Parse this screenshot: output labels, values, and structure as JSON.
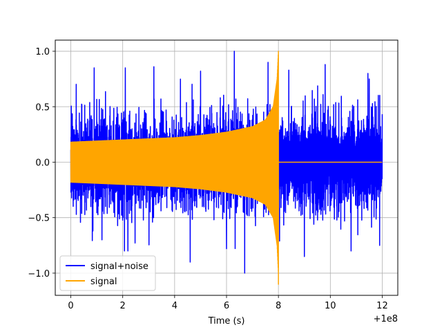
{
  "chart_data": {
    "type": "line",
    "title": "",
    "xlabel": "Time (s)",
    "ylabel": "",
    "x_offset_label": "+1e8",
    "xlim": [
      -0.6,
      12.6
    ],
    "ylim": [
      -1.2,
      1.1
    ],
    "xticks": [
      0,
      2,
      4,
      6,
      8,
      10,
      12
    ],
    "xtick_labels": [
      "0",
      "2",
      "4",
      "6",
      "8",
      "10",
      "12"
    ],
    "yticks": [
      -1.0,
      -0.5,
      0.0,
      0.5,
      1.0
    ],
    "ytick_labels": [
      "−1.0",
      "−0.5",
      "0.0",
      "0.5",
      "1.0"
    ],
    "grid": true,
    "legend_position": "lower-left",
    "series": [
      {
        "name": "signal+noise",
        "color": "#0000ff",
        "x_range": [
          0,
          12
        ],
        "typical_envelope": 0.4,
        "noise_peaks": [
          {
            "x": 0.9,
            "y": 0.85
          },
          {
            "x": 1.2,
            "y": -0.7
          },
          {
            "x": 2.1,
            "y": 0.85
          },
          {
            "x": 2.2,
            "y": -0.8
          },
          {
            "x": 3.2,
            "y": 0.86
          },
          {
            "x": 4.6,
            "y": -0.9
          },
          {
            "x": 5.0,
            "y": 0.82
          },
          {
            "x": 6.0,
            "y": -0.78
          },
          {
            "x": 6.3,
            "y": 1.0
          },
          {
            "x": 6.7,
            "y": -1.0
          },
          {
            "x": 7.6,
            "y": 0.9
          },
          {
            "x": 8.4,
            "y": 0.83
          },
          {
            "x": 9.0,
            "y": -0.85
          },
          {
            "x": 9.8,
            "y": 0.88
          },
          {
            "x": 10.8,
            "y": -0.8
          },
          {
            "x": 11.5,
            "y": 0.75
          },
          {
            "x": 11.9,
            "y": -0.75
          }
        ]
      },
      {
        "name": "signal",
        "color": "#ffa500",
        "x_range": [
          0,
          12
        ],
        "merger_time": 8.0,
        "envelope": [
          {
            "t": 0.0,
            "a": 0.18
          },
          {
            "t": 1.0,
            "a": 0.19
          },
          {
            "t": 2.0,
            "a": 0.2
          },
          {
            "t": 3.0,
            "a": 0.21
          },
          {
            "t": 4.0,
            "a": 0.22
          },
          {
            "t": 5.0,
            "a": 0.24
          },
          {
            "t": 6.0,
            "a": 0.27
          },
          {
            "t": 7.0,
            "a": 0.32
          },
          {
            "t": 7.5,
            "a": 0.38
          },
          {
            "t": 7.8,
            "a": 0.5
          },
          {
            "t": 7.95,
            "a": 0.75
          },
          {
            "t": 8.0,
            "a": 1.0
          }
        ],
        "peak_min": -1.1,
        "post_merger_value": 0.0
      }
    ]
  }
}
